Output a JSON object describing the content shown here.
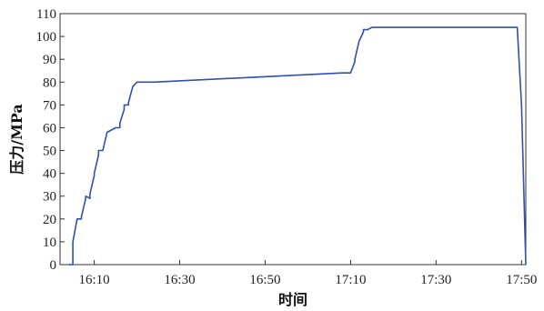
{
  "chart_data": {
    "type": "line",
    "xlabel": "时间",
    "ylabel": "压力/MPa",
    "x_unit": "time HH:MM",
    "xlim": [
      "16:02",
      "17:51"
    ],
    "ylim": [
      0,
      110
    ],
    "x_ticks": [
      "16:10",
      "16:30",
      "16:50",
      "17:10",
      "17:30",
      "17:50"
    ],
    "y_ticks": [
      0,
      10,
      20,
      30,
      40,
      50,
      60,
      70,
      80,
      90,
      100,
      110
    ],
    "grid": false,
    "legend": "none",
    "line_color": "#2f4fb3",
    "series": [
      {
        "x": [
          "16:04",
          "16:05",
          "16:05",
          "16:06",
          "16:07",
          "16:07",
          "16:08",
          "16:08",
          "16:09",
          "16:09",
          "16:10",
          "16:10",
          "16:11",
          "16:11",
          "16:12",
          "16:13",
          "16:15",
          "16:15",
          "16:16",
          "16:16",
          "16:17",
          "16:17",
          "16:18",
          "16:18",
          "16:19",
          "16:20",
          "16:21",
          "16:22",
          "16:24",
          "16:24",
          "17:08",
          "17:10",
          "17:11",
          "17:11",
          "17:12",
          "17:13",
          "17:13",
          "17:14",
          "17:15",
          "17:16",
          "17:48",
          "17:49",
          "17:50",
          "17:51"
        ],
        "values": [
          0,
          0,
          10,
          20,
          20,
          21,
          29,
          30,
          29,
          31,
          39,
          40,
          48,
          50,
          50,
          58,
          60,
          60,
          60,
          62,
          68,
          70,
          70,
          71,
          78,
          80,
          80,
          80,
          80,
          80,
          84,
          84,
          89,
          90,
          98,
          102,
          103,
          103,
          104,
          104,
          104,
          104,
          70,
          0
        ]
      }
    ]
  }
}
